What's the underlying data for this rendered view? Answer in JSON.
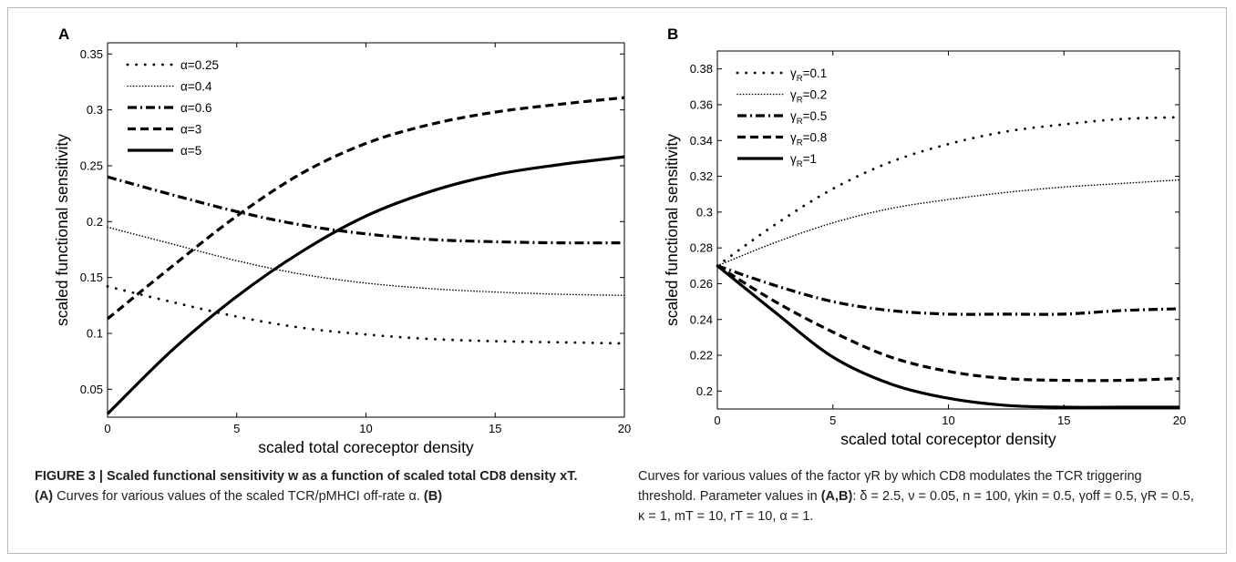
{
  "chart_data": [
    {
      "panel_label": "A",
      "type": "line",
      "xlabel": "scaled total coreceptor density",
      "ylabel": "scaled functional sensitivity",
      "xlim": [
        0,
        20
      ],
      "ylim": [
        0.025,
        0.36
      ],
      "xticks": [
        0,
        5,
        10,
        15,
        20
      ],
      "yticks": [
        0.05,
        0.1,
        0.15,
        0.2,
        0.25,
        0.3,
        0.35
      ],
      "ytick_labels": [
        "0.05",
        "0.1",
        "0.15",
        "0.2",
        "0.25",
        "0.3",
        "0.35"
      ],
      "grid": false,
      "legend_position": "top-left",
      "series": [
        {
          "name": "α=0.25",
          "style": "dotted-sparse",
          "x": [
            0,
            2.5,
            5,
            7.5,
            10,
            12.5,
            15,
            17.5,
            20
          ],
          "y": [
            0.142,
            0.128,
            0.115,
            0.105,
            0.099,
            0.095,
            0.093,
            0.092,
            0.091
          ]
        },
        {
          "name": "α=0.4",
          "style": "dotted-dense",
          "x": [
            0,
            2.5,
            5,
            7.5,
            10,
            12.5,
            15,
            17.5,
            20
          ],
          "y": [
            0.195,
            0.18,
            0.165,
            0.153,
            0.145,
            0.14,
            0.137,
            0.135,
            0.134
          ]
        },
        {
          "name": "α=0.6",
          "style": "dash-dot",
          "x": [
            0,
            2.5,
            5,
            7.5,
            10,
            12.5,
            15,
            17.5,
            20
          ],
          "y": [
            0.24,
            0.224,
            0.209,
            0.197,
            0.189,
            0.184,
            0.182,
            0.181,
            0.181
          ]
        },
        {
          "name": "α=3",
          "style": "dashed",
          "x": [
            0,
            2.5,
            5,
            7.5,
            10,
            12.5,
            15,
            17.5,
            20
          ],
          "y": [
            0.113,
            0.16,
            0.205,
            0.243,
            0.27,
            0.287,
            0.298,
            0.305,
            0.311
          ]
        },
        {
          "name": "α=5",
          "style": "solid",
          "x": [
            0,
            2.5,
            5,
            7.5,
            10,
            12.5,
            15,
            17.5,
            20
          ],
          "y": [
            0.028,
            0.085,
            0.133,
            0.173,
            0.205,
            0.227,
            0.242,
            0.251,
            0.258
          ]
        }
      ]
    },
    {
      "panel_label": "B",
      "type": "line",
      "xlabel": "scaled total coreceptor density",
      "ylabel": "scaled functional sensitivity",
      "xlim": [
        0,
        20
      ],
      "ylim": [
        0.19,
        0.39
      ],
      "xticks": [
        0,
        5,
        10,
        15,
        20
      ],
      "yticks": [
        0.2,
        0.22,
        0.24,
        0.26,
        0.28,
        0.3,
        0.32,
        0.34,
        0.36,
        0.38
      ],
      "ytick_labels": [
        "0.2",
        "0.22",
        "0.24",
        "0.26",
        "0.28",
        "0.3",
        "0.32",
        "0.34",
        "0.36",
        "0.38"
      ],
      "grid": false,
      "legend_position": "top-left",
      "series": [
        {
          "name": "γR=0.1",
          "label_main": "γ",
          "label_sub": "R",
          "label_rest": "=0.1",
          "style": "dotted-sparse",
          "x": [
            0,
            2.5,
            5,
            7.5,
            10,
            12.5,
            15,
            17.5,
            20
          ],
          "y": [
            0.27,
            0.293,
            0.313,
            0.328,
            0.338,
            0.345,
            0.349,
            0.352,
            0.353
          ]
        },
        {
          "name": "γR=0.2",
          "label_main": "γ",
          "label_sub": "R",
          "label_rest": "=0.2",
          "style": "dotted-dense",
          "x": [
            0,
            2.5,
            5,
            7.5,
            10,
            12.5,
            15,
            17.5,
            20
          ],
          "y": [
            0.27,
            0.283,
            0.294,
            0.302,
            0.307,
            0.311,
            0.314,
            0.316,
            0.318
          ]
        },
        {
          "name": "γR=0.5",
          "label_main": "γ",
          "label_sub": "R",
          "label_rest": "=0.5",
          "style": "dash-dot",
          "x": [
            0,
            2.5,
            5,
            7.5,
            10,
            12.5,
            15,
            17.5,
            20
          ],
          "y": [
            0.27,
            0.259,
            0.25,
            0.245,
            0.243,
            0.243,
            0.243,
            0.245,
            0.246
          ]
        },
        {
          "name": "γR=0.8",
          "label_main": "γ",
          "label_sub": "R",
          "label_rest": "=0.8",
          "style": "dashed",
          "x": [
            0,
            2.5,
            5,
            7.5,
            10,
            12.5,
            15,
            17.5,
            20
          ],
          "y": [
            0.27,
            0.25,
            0.233,
            0.219,
            0.211,
            0.207,
            0.206,
            0.206,
            0.207
          ]
        },
        {
          "name": "γR=1",
          "label_main": "γ",
          "label_sub": "R",
          "label_rest": "=1",
          "style": "solid",
          "x": [
            0,
            2.5,
            5,
            7.5,
            10,
            12.5,
            15,
            17.5,
            20
          ],
          "y": [
            0.27,
            0.244,
            0.219,
            0.204,
            0.196,
            0.192,
            0.191,
            0.191,
            0.191
          ]
        }
      ]
    }
  ],
  "caption": {
    "title": "FIGURE 3 | Scaled functional sensitivity w as a function of scaled total CD8 density xT.",
    "part_a_label": "(A)",
    "part_a_text": "Curves for various values of the scaled TCR/pMHCI off-rate α.",
    "part_b_label": "(B)",
    "part_b_text": "Curves for various values of the factor γR by which CD8 modulates the TCR triggering threshold. Parameter values in",
    "params_label": "(A,B)",
    "params_text": ": δ = 2.5, ν = 0.05, n = 100, γkin = 0.5, γoff = 0.5, γR = 0.5, κ = 1, mT = 10, rT = 10, α = 1."
  }
}
